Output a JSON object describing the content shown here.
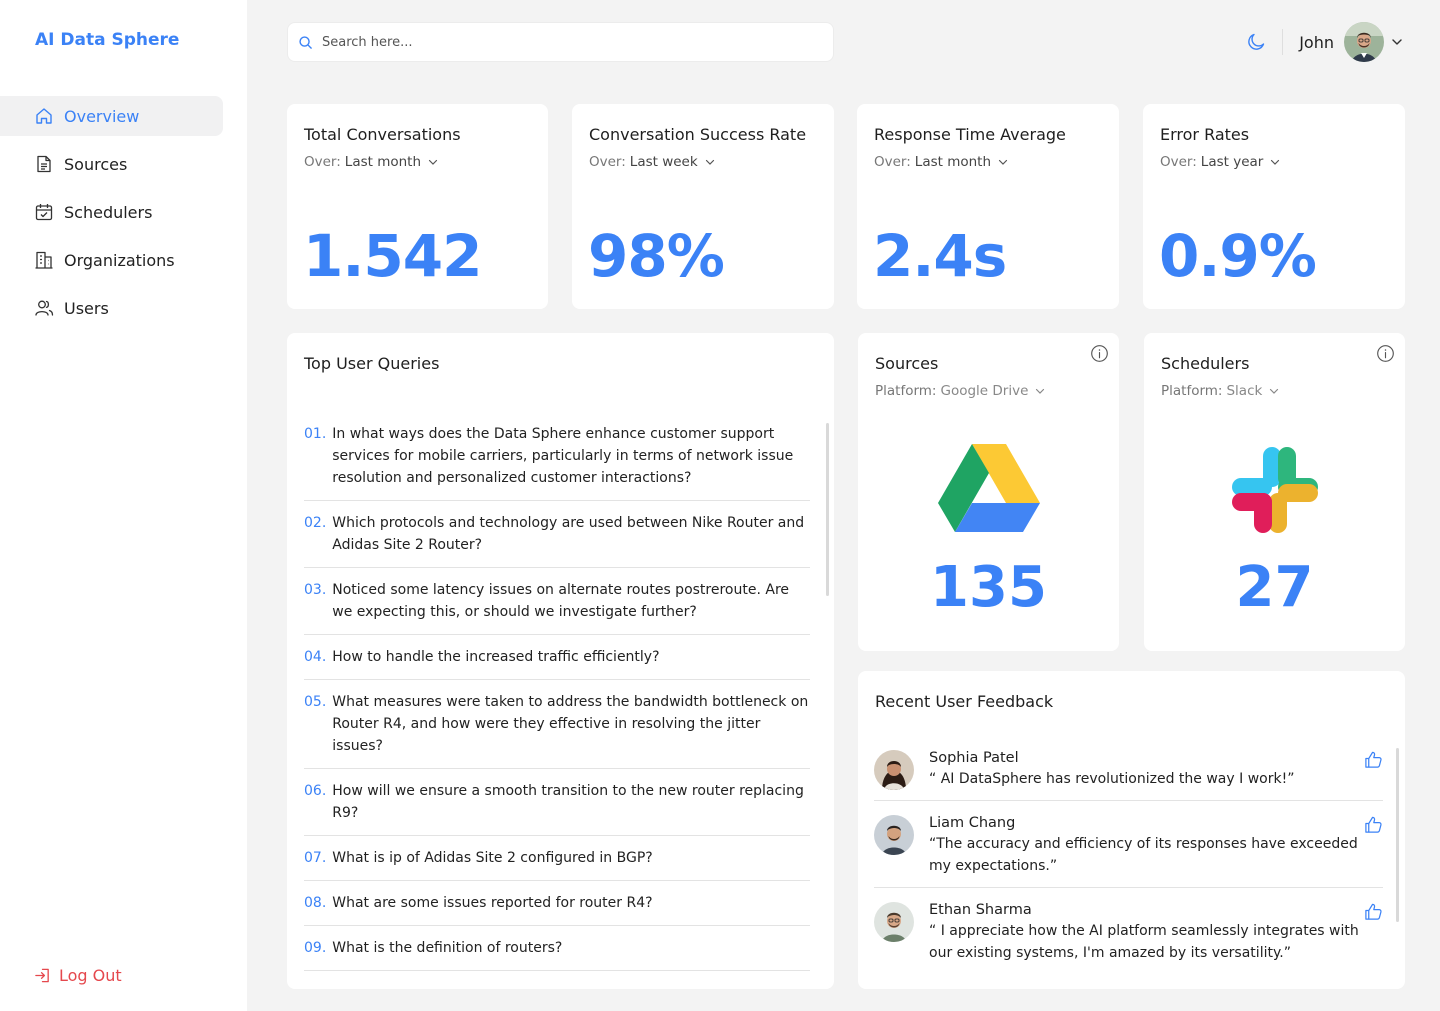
{
  "app": {
    "brand": "AI Data Sphere"
  },
  "sidebar": {
    "items": [
      {
        "label": "Overview",
        "icon": "home-icon",
        "active": true
      },
      {
        "label": "Sources",
        "icon": "document-icon"
      },
      {
        "label": "Schedulers",
        "icon": "calendar-check-icon"
      },
      {
        "label": "Organizations",
        "icon": "building-icon"
      },
      {
        "label": "Users",
        "icon": "users-icon"
      }
    ],
    "logout": "Log Out"
  },
  "header": {
    "search_placeholder": "Search here...",
    "user_name": "John"
  },
  "stats": [
    {
      "title": "Total Conversations",
      "over_label": "Over:",
      "period": "Last month",
      "value": "1.542"
    },
    {
      "title": "Conversation Success Rate",
      "over_label": "Over:",
      "period": "Last week",
      "value": "98%"
    },
    {
      "title": "Response Time Average",
      "over_label": "Over:",
      "period": "Last month",
      "value": "2.4s"
    },
    {
      "title": "Error Rates",
      "over_label": "Over:",
      "period": "Last year",
      "value": "0.9%"
    }
  ],
  "queries": {
    "title": "Top User Queries",
    "items": [
      {
        "num": "01.",
        "text": "In what ways does the Data Sphere enhance customer support services for mobile carriers, particularly in terms of network issue resolution and personalized customer interactions?"
      },
      {
        "num": "02.",
        "text": "Which protocols and technology are used between Nike Router and Adidas Site 2 Router?"
      },
      {
        "num": "03.",
        "text": "Noticed some latency issues on alternate routes postreroute. Are we expecting this, or should we investigate further?"
      },
      {
        "num": "04.",
        "text": "How to handle the increased traffic efficiently?"
      },
      {
        "num": "05.",
        "text": "What measures were taken to address the bandwidth bottleneck on Router R4, and how were they effective in resolving the jitter issues?"
      },
      {
        "num": "06.",
        "text": "How will we ensure a smooth transition to the new router replacing R9?"
      },
      {
        "num": "07.",
        "text": "What is ip of Adidas Site 2 configured in BGP?"
      },
      {
        "num": "08.",
        "text": "What are some issues reported for router R4?"
      },
      {
        "num": "09.",
        "text": "What is the definition of routers?"
      }
    ]
  },
  "sources": {
    "title": "Sources",
    "platform_label": "Platform:",
    "platform": "Google Drive",
    "count": "135",
    "logo": "google-drive-logo"
  },
  "schedulers": {
    "title": "Schedulers",
    "platform_label": "Platform:",
    "platform": "Slack",
    "count": "27",
    "logo": "slack-logo"
  },
  "feedback": {
    "title": "Recent User Feedback",
    "items": [
      {
        "name": "Sophia Patel",
        "text": "“ AI DataSphere has revolutionized the way I work!”"
      },
      {
        "name": "Liam Chang",
        "text": "“The accuracy and efficiency of its responses have exceeded my expectations.”"
      },
      {
        "name": "Ethan Sharma",
        "text": "“ I appreciate how the AI platform seamlessly integrates with our existing systems, I'm amazed by its versatility.”"
      }
    ]
  },
  "colors": {
    "accent": "#3b82f6",
    "danger": "#e5484d",
    "background": "#f3f3f3"
  }
}
